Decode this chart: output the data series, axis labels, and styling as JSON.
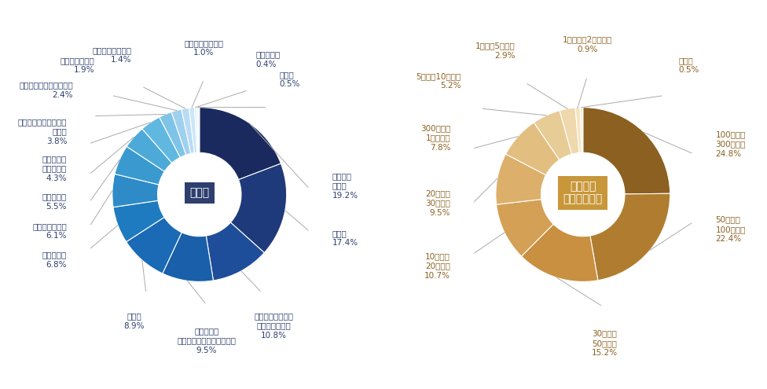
{
  "chart1": {
    "title": "業　種",
    "title_bg": "#2e3f6e",
    "title_color": "#ffffff",
    "labels": [
      "卸売業・\n小売業",
      "製造業",
      "学術研究・専門・\n技術サービス業",
      "サービス業\n（他に分類されないもの）",
      "建設業",
      "情報通信業",
      "運輸業・郵便業",
      "医療・福祉",
      "不動産業・\n物品賃貸業",
      "生活関連サービス業・\n娯楽業",
      "宿泊業・飲食サービス業",
      "金融業・保険業",
      "教育・学習支援業",
      "複合サービス事業",
      "農業・林業",
      "その他"
    ],
    "pct_labels": [
      "19.2%",
      "17.4%",
      "10.8%",
      "9.5%",
      "8.9%",
      "6.8%",
      "6.1%",
      "5.5%",
      "4.3%",
      "3.8%",
      "2.4%",
      "1.9%",
      "1.4%",
      "1.0%",
      "0.4%",
      "0.5%"
    ],
    "values": [
      19.2,
      17.4,
      10.8,
      9.5,
      8.9,
      6.8,
      6.1,
      5.5,
      4.3,
      3.8,
      2.4,
      1.9,
      1.4,
      1.0,
      0.4,
      0.5
    ],
    "colors": [
      "#1a2a5e",
      "#1e3a7a",
      "#1e4d9a",
      "#1a5faa",
      "#1a6ab5",
      "#1f7bbf",
      "#2e8bc8",
      "#3a9ad0",
      "#4daad8",
      "#60b8e0",
      "#7fc4e8",
      "#9fd0ef",
      "#b8dcf5",
      "#cce5f8",
      "#dceef9",
      "#eef6fc"
    ]
  },
  "chart2": {
    "title": "企業規模\n（従業員数）",
    "title_bg": "#c8973a",
    "title_color": "#ffffff",
    "labels": [
      "100人以上\n300人未満",
      "50人以上\n100人未満",
      "30人以上\n50人未満",
      "10人以上\n20人未満",
      "20人以上\n30人未満",
      "300人以上\n1千人未満",
      "5人以上10人未満",
      "1人以上5人未満",
      "1千人以上2千人未満",
      "その他"
    ],
    "pct_labels": [
      "24.8%",
      "22.4%",
      "15.2%",
      "10.7%",
      "9.5%",
      "7.8%",
      "5.2%",
      "2.9%",
      "0.9%",
      "0.5%"
    ],
    "values": [
      24.8,
      22.4,
      15.2,
      10.7,
      9.5,
      7.8,
      5.2,
      2.9,
      0.9,
      0.5
    ],
    "colors": [
      "#8b6020",
      "#b07d30",
      "#c89040",
      "#d4a055",
      "#dcb06a",
      "#e2bf80",
      "#e8cc96",
      "#eed8ac",
      "#f3e4c2",
      "#f8f0dc"
    ]
  },
  "text_color": "#2e3f6e",
  "text_color2": "#8b6020",
  "label_fontsize": 7.5,
  "background_color": "#ffffff"
}
